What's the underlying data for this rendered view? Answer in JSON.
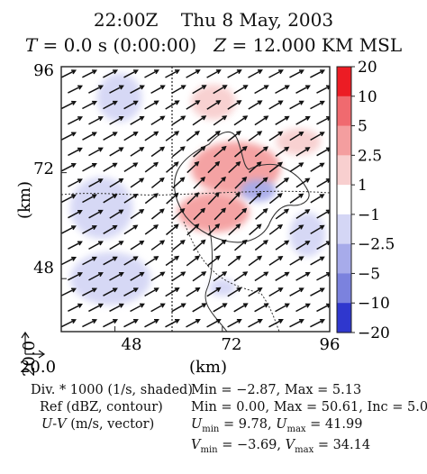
{
  "header": {
    "time": "22:00Z",
    "date": "Thu 8 May, 2003",
    "t_label": "T",
    "t_value": " = 0.0 s (0:00:00)",
    "z_label": "Z",
    "z_value": " = 12.000 KM MSL"
  },
  "chart_data": {
    "type": "heatmap",
    "title": "22:00Z Thu 8 May, 2003",
    "subtitle": "T = 0.0 s (0:00:00) Z = 12.000 KM MSL",
    "xlabel": "(km)",
    "ylabel": "(km)",
    "xlim": [
      36,
      96
    ],
    "ylim": [
      36,
      96
    ],
    "x_ticks": [
      "48",
      "72",
      "96"
    ],
    "y_ticks": [
      "48",
      "72",
      "96"
    ],
    "corner_origin_x": "20.0",
    "corner_origin_y": "20.0",
    "colorbar": {
      "tick_labels": [
        "20",
        "10",
        "5",
        "2.5",
        "1",
        "−1",
        "−2.5",
        "−5",
        "−10",
        "−20"
      ],
      "colors": [
        "#ec1c24",
        "#f06a6f",
        "#f49e9f",
        "#f8cfcf",
        "#ffffff",
        "#d4d6f5",
        "#a7abea",
        "#7b82de",
        "#2f37ce"
      ]
    },
    "field_series": [
      {
        "name": "Div. * 1000 (1/s, shaded)",
        "min": -2.87,
        "max": 5.13
      },
      {
        "name": "Ref (dBZ, contour)",
        "min": 0.0,
        "max": 50.61,
        "inc": 5.0
      },
      {
        "name": "U-V (m/s, vector)",
        "u_min": 9.78,
        "u_max": 41.99,
        "v_min": -3.69,
        "v_max": 34.14
      }
    ],
    "divergence_regions": [
      {
        "cx": 49,
        "cy": 89,
        "rx": 5,
        "ry": 5.5,
        "value": -1.6
      },
      {
        "cx": 70,
        "cy": 88,
        "rx": 5,
        "ry": 4,
        "value": 1.6
      },
      {
        "cx": 89,
        "cy": 79,
        "rx": 5,
        "ry": 3,
        "value": 1.2
      },
      {
        "cx": 75,
        "cy": 73,
        "rx": 10,
        "ry": 6,
        "value": 3.5
      },
      {
        "cx": 70,
        "cy": 63,
        "rx": 8,
        "ry": 4.5,
        "value": 3.0
      },
      {
        "cx": 80,
        "cy": 68,
        "rx": 4,
        "ry": 2.5,
        "value": -2.8
      },
      {
        "cx": 45,
        "cy": 64,
        "rx": 7,
        "ry": 7,
        "value": -1.6
      },
      {
        "cx": 47,
        "cy": 48,
        "rx": 9,
        "ry": 6,
        "value": -1.6
      },
      {
        "cx": 91,
        "cy": 58,
        "rx": 4,
        "ry": 5,
        "value": -1.4
      },
      {
        "cx": 72,
        "cy": 46,
        "rx": 3,
        "ry": 2,
        "value": -1.2
      }
    ],
    "wind_vector": {
      "u_typical": 30,
      "v_typical": 15
    }
  },
  "footer": {
    "div_label": "Div. * 1000 (1/s, shaded)",
    "div_stats": "Min = −2.87, Max = 5.13",
    "ref_label": "Ref (dBZ, contour)",
    "ref_stats": "Min = 0.00, Max = 50.61, Inc = 5.000",
    "uv_label_u": "U",
    "uv_label_dash": "-",
    "uv_label_v": "V",
    "uv_label_rest": " (m/s, vector)",
    "u_min_sym": "U",
    "u_min_sub": "min",
    "u_min_val": " = 9.78, ",
    "u_max_sym": "U",
    "u_max_sub": "max",
    "u_max_val": " = 41.99",
    "v_min_sym": "V",
    "v_min_sub": "min",
    "v_min_val": " = −3.69, ",
    "v_max_sym": "V",
    "v_max_sub": "max",
    "v_max_val": " = 34.14"
  }
}
